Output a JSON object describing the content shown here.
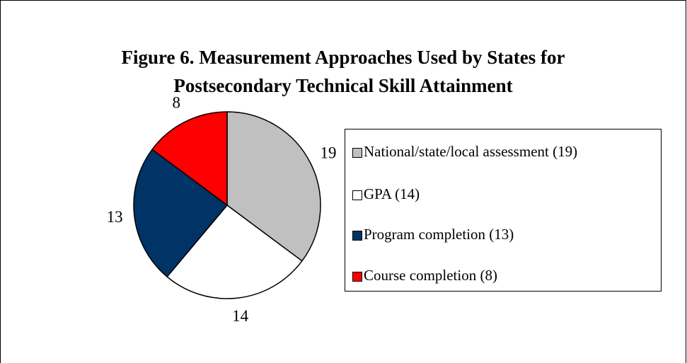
{
  "chart_data": {
    "type": "pie",
    "title": [
      "Figure 6.  Measurement Approaches Used by States for",
      "Postsecondary Technical Skill Attainment"
    ],
    "categories": [
      "National/state/local assessment (19)",
      "GPA (14)",
      "Program completion (13)",
      "Course completion (8)"
    ],
    "values": [
      19,
      14,
      13,
      8
    ],
    "colors": [
      "#c0c0c0",
      "#ffffff",
      "#003366",
      "#ff0000"
    ],
    "legend": "right"
  }
}
